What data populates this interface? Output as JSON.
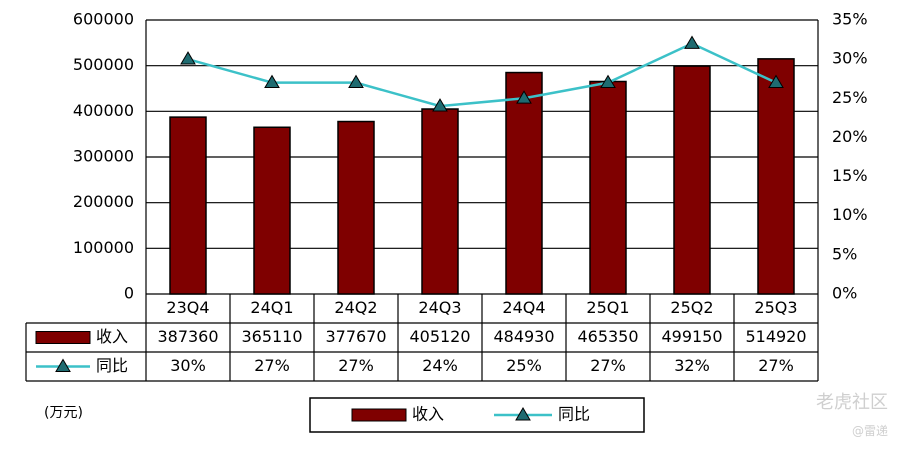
{
  "chart_data": {
    "type": "bar",
    "categories": [
      "23Q4",
      "24Q1",
      "24Q2",
      "24Q3",
      "24Q4",
      "25Q1",
      "25Q2",
      "25Q3"
    ],
    "series": [
      {
        "name": "收入",
        "type": "bar",
        "axis": "left",
        "color": "#7f0000",
        "values": [
          387360,
          365110,
          377670,
          405120,
          484930,
          465350,
          499150,
          514920
        ]
      },
      {
        "name": "同比",
        "type": "line",
        "axis": "right",
        "color": "#3cc1c8",
        "marker": "triangle",
        "values": [
          0.3,
          0.27,
          0.27,
          0.24,
          0.25,
          0.27,
          0.32,
          0.27
        ]
      }
    ],
    "table_values": {
      "收入": [
        "387360",
        "365110",
        "377670",
        "405120",
        "484930",
        "465350",
        "499150",
        "514920"
      ],
      "同比": [
        "30%",
        "27%",
        "27%",
        "24%",
        "25%",
        "27%",
        "32%",
        "27%"
      ]
    },
    "ylim_left": [
      0,
      600000
    ],
    "yticks_left": [
      "0",
      "100000",
      "200000",
      "300000",
      "400000",
      "500000",
      "600000"
    ],
    "ylim_right": [
      0,
      0.35
    ],
    "yticks_right": [
      "0%",
      "5%",
      "10%",
      "15%",
      "20%",
      "25%",
      "30%",
      "35%"
    ],
    "grid": true,
    "legend": [
      "收入",
      "同比"
    ],
    "legend_position": "bottom"
  },
  "unit_label": "(万元)",
  "watermark": "老虎社区",
  "watermark_sub": "@雷递"
}
